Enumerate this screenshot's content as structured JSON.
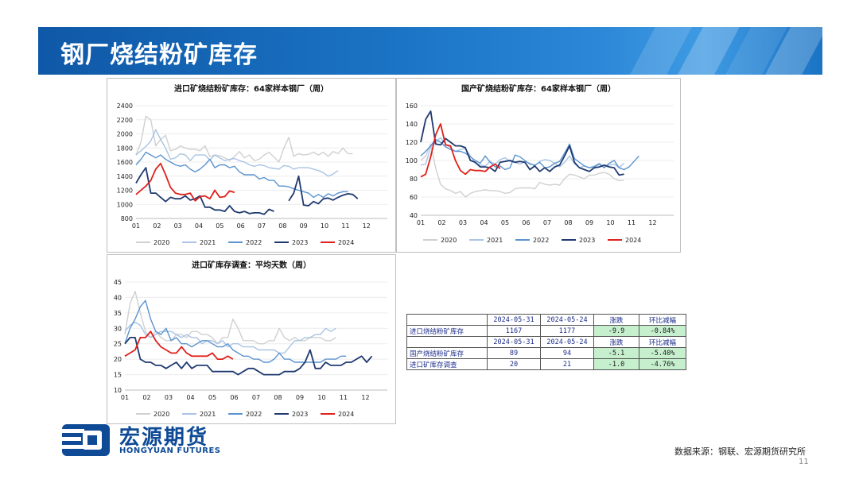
{
  "page": {
    "title": "钢厂烧结粉矿库存",
    "source": "数据来源：钢联、宏源期货研究所",
    "page_number": "11"
  },
  "logo": {
    "cn": "宏源期货",
    "en": "HONGYUAN FUTURES"
  },
  "colors": {
    "2020": "#d0d0d0",
    "2021": "#a9c4e4",
    "2022": "#5b93cf",
    "2023": "#1f3a70",
    "2024": "#e0201b",
    "banner": "#1b6fc0",
    "table_text": "#1c2d8a",
    "table_green": "#c6efce"
  },
  "chart_data": [
    {
      "type": "line",
      "title": "进口矿烧结粉矿库存：64家样本钢厂（周）",
      "x_tick_labels": [
        "01",
        "02",
        "03",
        "04",
        "05",
        "06",
        "07",
        "08",
        "09",
        "10",
        "11",
        "12"
      ],
      "y_ticks": [
        800,
        1000,
        1200,
        1400,
        1600,
        1800,
        2000,
        2200,
        2400
      ],
      "ylim": [
        800,
        2400
      ],
      "legend": "bottom",
      "series": [
        {
          "name": "2020",
          "color": "#d0d0d0",
          "values": [
            1700,
            1880,
            2250,
            2200,
            1830,
            1920,
            1980,
            1760,
            1780,
            1830,
            1800,
            1780,
            1780,
            1760,
            1830,
            1680,
            1700,
            1690,
            1660,
            1620,
            1680,
            1750,
            1660,
            1700,
            1620,
            1640,
            1700,
            1740,
            1670,
            1600,
            1800,
            1950,
            1680,
            1720,
            1700,
            1710,
            1740,
            1700,
            1740,
            1680,
            1750,
            1720,
            1800,
            1720,
            1720
          ]
        },
        {
          "name": "2021",
          "color": "#a9c4e4",
          "values": [
            1700,
            1760,
            1820,
            1900,
            2060,
            1920,
            1800,
            1640,
            1660,
            1720,
            1700,
            1620,
            1700,
            1700,
            1700,
            1630,
            1700,
            1660,
            1620,
            1640,
            1650,
            1620,
            1600,
            1560,
            1540,
            1560,
            1550,
            1520,
            1510,
            1500,
            1550,
            1540,
            1500,
            1520,
            1520,
            1520,
            1500,
            1480,
            1450,
            1400,
            1430,
            1480
          ]
        },
        {
          "name": "2022",
          "color": "#5b93cf",
          "values": [
            1560,
            1640,
            1740,
            1700,
            1660,
            1700,
            1640,
            1600,
            1560,
            1540,
            1560,
            1500,
            1460,
            1500,
            1560,
            1640,
            1520,
            1560,
            1560,
            1520,
            1540,
            1460,
            1420,
            1420,
            1420,
            1360,
            1380,
            1340,
            1340,
            1260,
            1260,
            1250,
            1220,
            1200,
            1180,
            1160,
            1100,
            1140,
            1100,
            1150,
            1120,
            1160,
            1180,
            1180
          ]
        },
        {
          "name": "2023",
          "color": "#1f3a70",
          "values": [
            1300,
            1420,
            1520,
            1160,
            1160,
            1100,
            1040,
            1100,
            1080,
            1080,
            1120,
            1060,
            1080,
            1120,
            960,
            960,
            920,
            920,
            900,
            980,
            900,
            880,
            900,
            870,
            880,
            880,
            860,
            930,
            900,
            null,
            null,
            1050,
            1160,
            1400,
            990,
            980,
            1040,
            1010,
            1080,
            1090,
            1060,
            1100,
            1130,
            1150,
            1140,
            1080
          ]
        },
        {
          "name": "2024",
          "color": "#e0201b",
          "values": [
            1140,
            1200,
            1260,
            1340,
            1500,
            1580,
            1420,
            1240,
            1160,
            1140,
            1140,
            1160,
            1050,
            1110,
            1120,
            1080,
            1200,
            1100,
            1110,
            1190,
            1170
          ]
        }
      ]
    },
    {
      "type": "line",
      "title": "国产矿烧结粉矿库存：64家样本钢厂（周）",
      "x_tick_labels": [
        "01",
        "02",
        "03",
        "04",
        "05",
        "06",
        "07",
        "08",
        "09",
        "10",
        "11",
        "12"
      ],
      "y_ticks": [
        40,
        60,
        80,
        100,
        120,
        140,
        160
      ],
      "ylim": [
        40,
        160
      ],
      "legend": "bottom",
      "series": [
        {
          "name": "2020",
          "color": "#d0d0d0",
          "values": [
            100,
            105,
            118,
            92,
            74,
            69,
            67,
            64,
            66,
            60,
            64,
            66,
            67,
            68,
            67,
            67,
            66,
            64,
            65,
            69,
            70,
            70,
            70,
            69,
            76,
            74,
            73,
            74,
            73,
            80,
            85,
            84,
            82,
            80,
            84,
            84,
            86,
            87,
            85,
            80,
            78,
            78
          ]
        },
        {
          "name": "2021",
          "color": "#a9c4e4",
          "values": [
            95,
            96,
            115,
            120,
            125,
            118,
            114,
            110,
            112,
            113,
            105,
            97,
            95,
            94,
            99,
            96,
            101,
            103,
            99,
            98,
            96,
            99,
            97,
            94,
            99,
            101,
            100,
            97,
            93,
            98,
            105,
            96,
            92,
            94,
            92,
            94,
            97,
            93,
            95,
            96,
            92,
            97
          ]
        },
        {
          "name": "2022",
          "color": "#5b93cf",
          "values": [
            105,
            110,
            116,
            123,
            120,
            115,
            112,
            110,
            110,
            108,
            104,
            100,
            97,
            105,
            98,
            93,
            94,
            90,
            92,
            106,
            104,
            100,
            96,
            95,
            98,
            92,
            93,
            97,
            99,
            108,
            118,
            102,
            98,
            94,
            92,
            93,
            96,
            92,
            97,
            100,
            92,
            90,
            93,
            99,
            105
          ]
        },
        {
          "name": "2023",
          "color": "#1f3a70",
          "values": [
            120,
            145,
            154,
            118,
            117,
            124,
            120,
            116,
            116,
            114,
            100,
            98,
            93,
            93,
            92,
            88,
            98,
            99,
            100,
            98,
            99,
            98,
            90,
            94,
            88,
            92,
            88,
            93,
            95,
            105,
            116,
            98,
            92,
            90,
            88,
            92,
            93,
            95,
            93,
            92,
            84,
            85
          ]
        },
        {
          "name": "2024",
          "color": "#e0201b",
          "values": [
            82,
            85,
            104,
            128,
            140,
            117,
            116,
            100,
            89,
            85,
            90,
            89,
            89,
            88,
            93,
            96,
            91
          ]
        }
      ]
    },
    {
      "type": "line",
      "title": "进口矿库存调查：平均天数（周）",
      "x_tick_labels": [
        "01",
        "02",
        "03",
        "04",
        "05",
        "06",
        "07",
        "08",
        "09",
        "10",
        "11",
        "12"
      ],
      "y_ticks": [
        10,
        15,
        20,
        25,
        30,
        35,
        40,
        45
      ],
      "ylim": [
        10,
        45
      ],
      "legend": "bottom",
      "series": [
        {
          "name": "2020",
          "color": "#d0d0d0",
          "values": [
            28,
            38,
            42,
            35,
            29,
            27,
            29,
            27,
            26,
            26,
            28,
            28,
            27,
            29,
            29,
            28,
            28,
            27,
            25,
            27,
            27,
            33,
            30,
            26,
            26,
            26,
            25,
            25,
            26,
            26,
            30,
            27,
            26,
            27,
            26,
            26,
            27,
            27,
            27,
            26,
            26,
            27
          ]
        },
        {
          "name": "2021",
          "color": "#a9c4e4",
          "values": [
            29,
            31,
            32,
            31,
            28,
            27,
            28,
            29,
            29,
            29,
            28,
            27,
            28,
            27,
            27,
            25,
            26,
            26,
            25,
            26,
            24,
            25,
            25,
            24,
            24,
            24,
            23,
            23,
            23,
            23,
            22,
            22,
            24,
            26,
            26,
            27,
            27,
            28,
            28,
            30,
            29,
            30
          ]
        },
        {
          "name": "2022",
          "color": "#5b93cf",
          "values": [
            25,
            30,
            33,
            37,
            39,
            33,
            29,
            28,
            30,
            26,
            27,
            25,
            25,
            24,
            25,
            26,
            26,
            25,
            24,
            24,
            25,
            23,
            22,
            21,
            21,
            20,
            20,
            19,
            19,
            20,
            22,
            20,
            20,
            19,
            19,
            19,
            19,
            19,
            19,
            20,
            20,
            20,
            21,
            21
          ]
        },
        {
          "name": "2023",
          "color": "#1f3a70",
          "values": [
            25,
            27,
            27,
            20,
            19,
            19,
            18,
            18,
            17,
            18,
            19,
            17,
            19,
            17,
            18,
            18,
            18,
            16,
            16,
            16,
            16,
            16,
            15,
            16,
            17,
            17,
            16,
            15,
            15,
            15,
            15,
            16,
            16,
            16,
            17,
            19,
            23,
            17,
            17,
            19,
            18,
            18,
            18,
            19,
            19,
            20,
            21,
            19,
            21
          ]
        },
        {
          "name": "2024",
          "color": "#e0201b",
          "values": [
            21,
            22,
            23,
            27,
            27,
            29,
            26,
            24,
            23,
            22,
            22,
            24,
            22,
            21,
            21,
            21,
            21,
            22,
            20,
            20,
            21,
            20
          ]
        }
      ]
    }
  ],
  "table": {
    "rows": [
      [
        "",
        "2024-05-31",
        "2024-05-24",
        "涨跌",
        "环比减幅"
      ],
      [
        "进口烧结粉矿库存",
        "1167",
        "1177",
        "-9.9",
        "-0.84%"
      ],
      [
        "",
        "2024-05-31",
        "2024-05-24",
        "涨跌",
        "环比减幅"
      ],
      [
        "国产烧结粉矿库存",
        "89",
        "94",
        "-5.1",
        "-5.40%"
      ],
      [
        "进口矿库存调查",
        "20",
        "21",
        "-1.0",
        "-4.76%"
      ]
    ]
  }
}
